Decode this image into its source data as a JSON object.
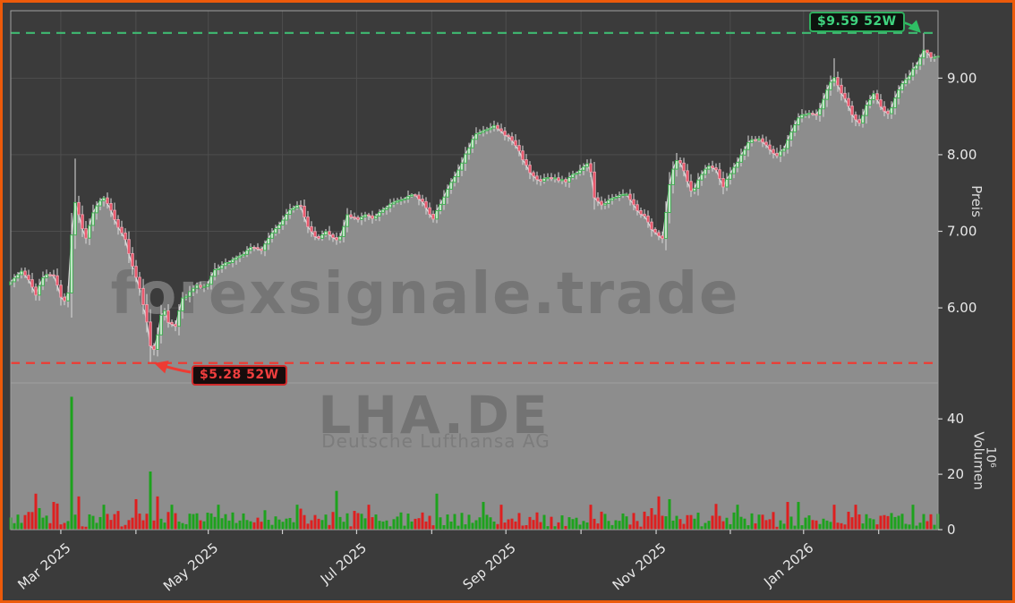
{
  "watermarks": {
    "domain": "forexsignale.trade",
    "symbol": "LHA.DE",
    "company": "Deutsche Lufthansa AG"
  },
  "annotations": {
    "high": {
      "label": "$9.59 52W",
      "value": 9.59,
      "text_color": "#3fd47f",
      "border_color": "#2fae5e",
      "bg": "#0d130e"
    },
    "low": {
      "label": "$5.28 52W",
      "value": 5.28,
      "text_color": "#f03e3e",
      "border_color": "#cf2b2b",
      "bg": "#170c0c"
    }
  },
  "colors": {
    "frame_border": "#ec5a0a",
    "background": "#3b3b3b",
    "plot_frame": "#a0a0a0",
    "gridline": "#4e4e4e",
    "area_fill": "#8d8d8d",
    "close_line": "#d8d8d8",
    "wick": "#dcdcdc",
    "candle_up_stroke": "#36b24a",
    "candle_up_fill": "#d8efdb",
    "candle_down_stroke": "#f2a2b1",
    "candle_down_fill": "#e94f63",
    "volume_up": "#1da21d",
    "volume_down": "#de1f1f",
    "high_line": "#3fba72",
    "low_line": "#ee3b33",
    "tick_mark": "#cfcfcf",
    "tick_text": "#e8e8e8"
  },
  "chart_data": {
    "type": "candlestick",
    "symbol": "LHA.DE",
    "company": "Deutsche Lufthansa AG",
    "x_range": [
      "Feb 2025",
      "Feb 2026"
    ],
    "high_52w": 9.59,
    "low_52w": 5.28,
    "candle_count": 260,
    "price_axis": {
      "label": "Preis",
      "min": 5.02,
      "max": 9.88,
      "ticks": [
        9,
        8,
        7,
        6
      ],
      "tick_labels": [
        "9.00",
        "8.00",
        "7.00",
        "6.00"
      ]
    },
    "volume_axis": {
      "label": "Volumen",
      "unit": "10⁶",
      "min": 0,
      "max": 53,
      "ticks": [
        40,
        20,
        0
      ],
      "tick_labels": [
        "40",
        "20",
        "0"
      ]
    },
    "x_ticks": [
      {
        "f": 0.054,
        "label": "Mar 2025"
      },
      {
        "f": 0.135,
        "label": null
      },
      {
        "f": 0.213,
        "label": "May 2025"
      },
      {
        "f": 0.293,
        "label": null
      },
      {
        "f": 0.373,
        "label": "Jul 2025"
      },
      {
        "f": 0.454,
        "label": null
      },
      {
        "f": 0.534,
        "label": "Sep 2025"
      },
      {
        "f": 0.615,
        "label": null
      },
      {
        "f": 0.696,
        "label": "Nov 2025"
      },
      {
        "f": 0.776,
        "label": null
      },
      {
        "f": 0.855,
        "label": "Jan 2026"
      },
      {
        "f": 0.936,
        "label": null
      }
    ],
    "close_keypoints": [
      [
        0.0,
        6.35
      ],
      [
        0.013,
        6.48
      ],
      [
        0.022,
        6.3
      ],
      [
        0.027,
        6.18
      ],
      [
        0.037,
        6.45
      ],
      [
        0.048,
        6.4
      ],
      [
        0.056,
        6.06
      ],
      [
        0.062,
        6.2
      ],
      [
        0.068,
        7.45
      ],
      [
        0.073,
        7.25
      ],
      [
        0.08,
        6.88
      ],
      [
        0.09,
        7.28
      ],
      [
        0.099,
        7.45
      ],
      [
        0.106,
        7.33
      ],
      [
        0.114,
        7.1
      ],
      [
        0.122,
        6.95
      ],
      [
        0.13,
        6.6
      ],
      [
        0.138,
        6.3
      ],
      [
        0.145,
        5.95
      ],
      [
        0.15,
        5.55
      ],
      [
        0.153,
        5.38
      ],
      [
        0.158,
        5.62
      ],
      [
        0.164,
        6.05
      ],
      [
        0.17,
        5.82
      ],
      [
        0.178,
        5.76
      ],
      [
        0.184,
        6.1
      ],
      [
        0.191,
        6.18
      ],
      [
        0.201,
        6.3
      ],
      [
        0.21,
        6.26
      ],
      [
        0.22,
        6.5
      ],
      [
        0.232,
        6.58
      ],
      [
        0.241,
        6.64
      ],
      [
        0.251,
        6.7
      ],
      [
        0.261,
        6.8
      ],
      [
        0.27,
        6.76
      ],
      [
        0.28,
        6.95
      ],
      [
        0.29,
        7.1
      ],
      [
        0.299,
        7.25
      ],
      [
        0.312,
        7.35
      ],
      [
        0.321,
        7.05
      ],
      [
        0.331,
        6.88
      ],
      [
        0.339,
        7.0
      ],
      [
        0.347,
        6.92
      ],
      [
        0.354,
        6.88
      ],
      [
        0.363,
        7.22
      ],
      [
        0.373,
        7.15
      ],
      [
        0.382,
        7.22
      ],
      [
        0.392,
        7.16
      ],
      [
        0.402,
        7.3
      ],
      [
        0.413,
        7.38
      ],
      [
        0.425,
        7.42
      ],
      [
        0.434,
        7.48
      ],
      [
        0.444,
        7.4
      ],
      [
        0.455,
        7.15
      ],
      [
        0.463,
        7.35
      ],
      [
        0.473,
        7.6
      ],
      [
        0.483,
        7.8
      ],
      [
        0.492,
        8.05
      ],
      [
        0.502,
        8.28
      ],
      [
        0.512,
        8.32
      ],
      [
        0.521,
        8.38
      ],
      [
        0.531,
        8.28
      ],
      [
        0.541,
        8.18
      ],
      [
        0.55,
        8.0
      ],
      [
        0.56,
        7.76
      ],
      [
        0.569,
        7.65
      ],
      [
        0.579,
        7.7
      ],
      [
        0.589,
        7.68
      ],
      [
        0.598,
        7.65
      ],
      [
        0.608,
        7.75
      ],
      [
        0.618,
        7.85
      ],
      [
        0.624,
        7.9
      ],
      [
        0.629,
        7.45
      ],
      [
        0.637,
        7.35
      ],
      [
        0.645,
        7.4
      ],
      [
        0.654,
        7.45
      ],
      [
        0.664,
        7.5
      ],
      [
        0.674,
        7.3
      ],
      [
        0.683,
        7.2
      ],
      [
        0.693,
        7.0
      ],
      [
        0.703,
        6.9
      ],
      [
        0.71,
        7.6
      ],
      [
        0.717,
        7.95
      ],
      [
        0.724,
        7.85
      ],
      [
        0.734,
        7.5
      ],
      [
        0.743,
        7.7
      ],
      [
        0.751,
        7.85
      ],
      [
        0.761,
        7.8
      ],
      [
        0.768,
        7.58
      ],
      [
        0.778,
        7.8
      ],
      [
        0.788,
        8.0
      ],
      [
        0.797,
        8.18
      ],
      [
        0.807,
        8.2
      ],
      [
        0.817,
        8.1
      ],
      [
        0.826,
        7.98
      ],
      [
        0.835,
        8.1
      ],
      [
        0.843,
        8.35
      ],
      [
        0.85,
        8.5
      ],
      [
        0.86,
        8.55
      ],
      [
        0.87,
        8.5
      ],
      [
        0.879,
        8.8
      ],
      [
        0.887,
        9.02
      ],
      [
        0.894,
        8.85
      ],
      [
        0.901,
        8.7
      ],
      [
        0.908,
        8.5
      ],
      [
        0.915,
        8.4
      ],
      [
        0.923,
        8.65
      ],
      [
        0.931,
        8.8
      ],
      [
        0.939,
        8.6
      ],
      [
        0.947,
        8.52
      ],
      [
        0.954,
        8.75
      ],
      [
        0.962,
        8.95
      ],
      [
        0.97,
        9.05
      ],
      [
        0.978,
        9.2
      ],
      [
        0.985,
        9.38
      ],
      [
        0.992,
        9.26
      ],
      [
        1.0,
        9.28
      ]
    ],
    "wick_events": [
      {
        "f": 0.068,
        "high": 7.95
      },
      {
        "f": 0.887,
        "high": 9.26
      },
      {
        "f": 0.985,
        "high": 9.59
      },
      {
        "f": 0.1525,
        "low": 5.28
      }
    ],
    "volume_spikes": [
      {
        "f": 0.027,
        "v": 13,
        "dir": -1
      },
      {
        "f": 0.046,
        "v": 10,
        "dir": -1
      },
      {
        "f": 0.064,
        "v": 48,
        "dir": 1
      },
      {
        "f": 0.075,
        "v": 12,
        "dir": -1
      },
      {
        "f": 0.102,
        "v": 9,
        "dir": 1
      },
      {
        "f": 0.135,
        "v": 11,
        "dir": -1
      },
      {
        "f": 0.151,
        "v": 21,
        "dir": 1
      },
      {
        "f": 0.16,
        "v": 12,
        "dir": -1
      },
      {
        "f": 0.174,
        "v": 9,
        "dir": 1
      },
      {
        "f": 0.223,
        "v": 9,
        "dir": 1
      },
      {
        "f": 0.307,
        "v": 9,
        "dir": 1
      },
      {
        "f": 0.35,
        "v": 14,
        "dir": 1
      },
      {
        "f": 0.387,
        "v": 9,
        "dir": -1
      },
      {
        "f": 0.461,
        "v": 13,
        "dir": 1
      },
      {
        "f": 0.51,
        "v": 10,
        "dir": 1
      },
      {
        "f": 0.529,
        "v": 9,
        "dir": -1
      },
      {
        "f": 0.625,
        "v": 9,
        "dir": -1
      },
      {
        "f": 0.698,
        "v": 12,
        "dir": -1
      },
      {
        "f": 0.712,
        "v": 11,
        "dir": 1
      },
      {
        "f": 0.783,
        "v": 9,
        "dir": 1
      },
      {
        "f": 0.836,
        "v": 10,
        "dir": -1
      },
      {
        "f": 0.85,
        "v": 10,
        "dir": 1
      },
      {
        "f": 0.888,
        "v": 9,
        "dir": -1
      },
      {
        "f": 0.91,
        "v": 9,
        "dir": -1
      },
      {
        "f": 0.973,
        "v": 9,
        "dir": 1
      }
    ]
  }
}
